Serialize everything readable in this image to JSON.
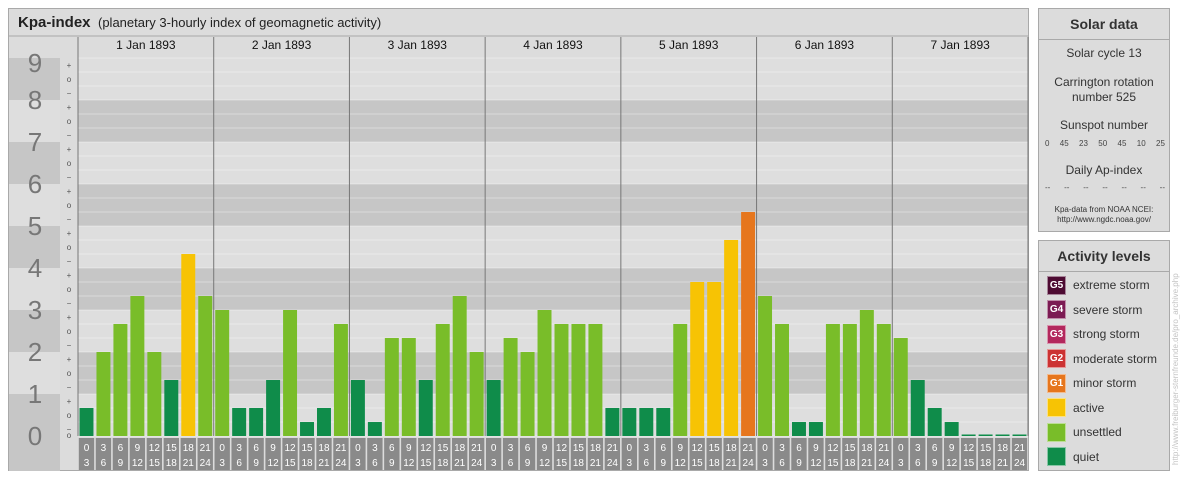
{
  "header": {
    "title": "Kpa-index",
    "subtitle": "(planetary 3-hourly index of geomagnetic activity)"
  },
  "chart_data": {
    "type": "bar",
    "title": "Kpa-index",
    "subtitle": "(planetary 3-hourly index of geomagnetic activity)",
    "ylim": [
      0,
      9
    ],
    "y_ticks": [
      "0",
      "1",
      "2",
      "3",
      "4",
      "5",
      "6",
      "7",
      "8",
      "9"
    ],
    "sub_ticks": [
      "−",
      "o",
      "+"
    ],
    "days": [
      "1 Jan 1893",
      "2 Jan 1893",
      "3 Jan 1893",
      "4 Jan 1893",
      "5 Jan 1893",
      "6 Jan 1893",
      "7 Jan 1893"
    ],
    "interval_start": [
      "0",
      "3",
      "6",
      "9",
      "12",
      "15",
      "18",
      "21"
    ],
    "interval_end": [
      "3",
      "6",
      "9",
      "12",
      "15",
      "18",
      "21",
      "24"
    ],
    "values": [
      0.667,
      2.0,
      2.667,
      3.333,
      2.0,
      1.333,
      4.333,
      3.333,
      3.0,
      0.667,
      0.667,
      1.333,
      3.0,
      0.333,
      0.667,
      2.667,
      1.333,
      0.333,
      2.333,
      2.333,
      1.333,
      2.667,
      3.333,
      2.0,
      1.333,
      2.333,
      2.0,
      3.0,
      2.667,
      2.667,
      2.667,
      0.667,
      0.667,
      0.667,
      0.667,
      2.667,
      3.667,
      3.667,
      4.667,
      5.333,
      3.333,
      2.667,
      0.333,
      0.333,
      2.667,
      2.667,
      3.0,
      2.667,
      2.333,
      1.333,
      0.667,
      0.333,
      0.0,
      0.0,
      0.0,
      0.0
    ],
    "grid": true,
    "legend_position": "right"
  },
  "colors": {
    "quiet": "#0f8c4a",
    "unsettled": "#79bd29",
    "active": "#f7c304",
    "minor_storm": "#e6761d",
    "moderate_storm": "#cc3333",
    "strong_storm": "#b3285d",
    "severe_storm": "#7c1b53",
    "extreme_storm": "#4d0b32",
    "band_dark": "#c6c6c6",
    "band_light": "#dedede"
  },
  "solar_data": {
    "title": "Solar data",
    "solar_cycle": "Solar cycle 13",
    "carrington_line1": "Carrington rotation",
    "carrington_line2": "number 525",
    "sunspot_label": "Sunspot number",
    "sunspot_values": [
      "0",
      "45",
      "23",
      "50",
      "45",
      "10",
      "25"
    ],
    "ap_label": "Daily Ap-index",
    "ap_values": [
      "--",
      "--",
      "--",
      "--",
      "--",
      "--",
      "--"
    ],
    "source_line1": "Kpa-data from NOAA NCEI:",
    "source_line2": "http://www.ngdc.noaa.gov/"
  },
  "activity_levels": {
    "title": "Activity levels",
    "items": [
      {
        "code": "G5",
        "label": "extreme storm",
        "color": "#4d0b32"
      },
      {
        "code": "G4",
        "label": "severe storm",
        "color": "#7c1b53"
      },
      {
        "code": "G3",
        "label": "strong storm",
        "color": "#b3285d"
      },
      {
        "code": "G2",
        "label": "moderate storm",
        "color": "#cc3333"
      },
      {
        "code": "G1",
        "label": "minor storm",
        "color": "#e6761d"
      },
      {
        "code": "",
        "label": "active",
        "color": "#f7c304"
      },
      {
        "code": "",
        "label": "unsettled",
        "color": "#79bd29"
      },
      {
        "code": "",
        "label": "quiet",
        "color": "#0f8c4a"
      }
    ]
  },
  "watermark": "http://www.freiburger-sternfreunde.de/pro_archive.php"
}
